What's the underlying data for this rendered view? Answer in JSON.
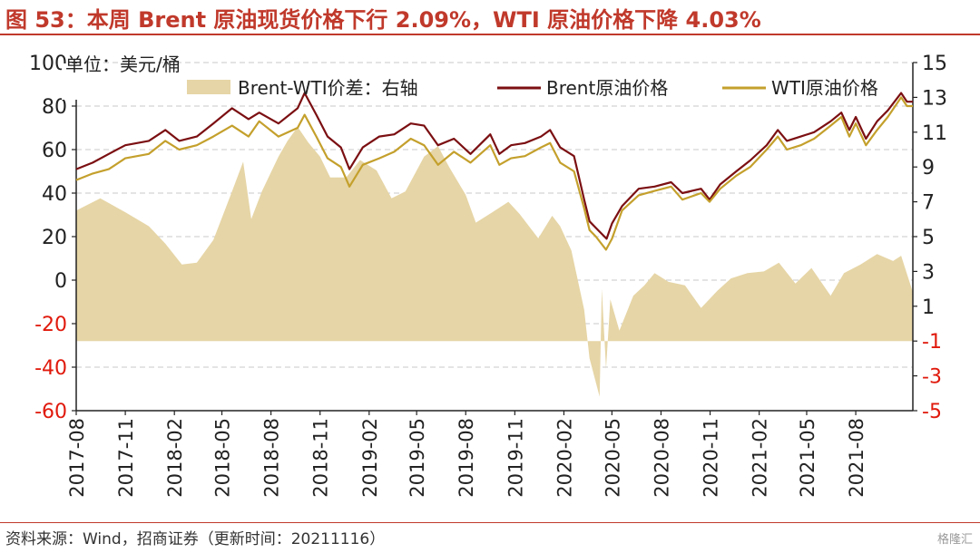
{
  "title": "图 53：本周 Brent 原油现货价格下行 2.09%，WTI 原油价格下降 4.03%",
  "source": "资料来源：Wind，招商证券（更新时间：20211116）",
  "watermark": "格隆汇",
  "chart_data": {
    "type": "line",
    "unit_label": "单位：美元/桶",
    "x_tick_labels": [
      "2017-08",
      "2017-11",
      "2018-02",
      "2018-05",
      "2018-08",
      "2018-11",
      "2019-02",
      "2019-05",
      "2019-08",
      "2019-11",
      "2020-02",
      "2020-05",
      "2020-08",
      "2020-11",
      "2021-02",
      "2021-05",
      "2021-08"
    ],
    "x_range": [
      "2017-08-01",
      "2021-11-16"
    ],
    "left_axis": {
      "ticks": [
        "100",
        "80",
        "60",
        "40",
        "20",
        "0",
        "-20",
        "-40",
        "-60"
      ],
      "ylim": [
        -60,
        100
      ],
      "negative_color": "#e0190c"
    },
    "right_axis": {
      "ticks": [
        "15",
        "13",
        "11",
        "9",
        "7",
        "5",
        "3",
        "1",
        "-1",
        "-3",
        "-5"
      ],
      "ylim": [
        -5,
        15
      ],
      "negative_color": "#e0190c"
    },
    "grid": "horizontal-dashed",
    "legend_position": "top",
    "series": [
      {
        "name": "Brent-WTI价差：右轴",
        "type": "area",
        "axis": "right",
        "color": "#e6d5a6",
        "points": [
          [
            "2017-08-01",
            6.5
          ],
          [
            "2017-09-15",
            7.2
          ],
          [
            "2017-11-01",
            6.4
          ],
          [
            "2017-12-15",
            5.6
          ],
          [
            "2018-01-15",
            4.6
          ],
          [
            "2018-02-15",
            3.4
          ],
          [
            "2018-03-15",
            3.5
          ],
          [
            "2018-04-15",
            4.8
          ],
          [
            "2018-05-15",
            7.2
          ],
          [
            "2018-06-10",
            9.3
          ],
          [
            "2018-06-25",
            6.0
          ],
          [
            "2018-07-15",
            7.6
          ],
          [
            "2018-08-15",
            9.6
          ],
          [
            "2018-09-01",
            10.5
          ],
          [
            "2018-09-20",
            11.3
          ],
          [
            "2018-10-10",
            10.4
          ],
          [
            "2018-11-01",
            9.6
          ],
          [
            "2018-11-20",
            8.4
          ],
          [
            "2018-12-20",
            8.4
          ],
          [
            "2019-01-15",
            9.4
          ],
          [
            "2019-02-15",
            8.8
          ],
          [
            "2019-03-15",
            7.2
          ],
          [
            "2019-04-10",
            7.6
          ],
          [
            "2019-05-15",
            9.6
          ],
          [
            "2019-06-10",
            10.2
          ],
          [
            "2019-07-01",
            9.0
          ],
          [
            "2019-08-01",
            7.4
          ],
          [
            "2019-08-20",
            5.8
          ],
          [
            "2019-09-20",
            6.4
          ],
          [
            "2019-10-20",
            7.0
          ],
          [
            "2019-11-10",
            6.3
          ],
          [
            "2019-12-15",
            4.9
          ],
          [
            "2020-01-10",
            6.2
          ],
          [
            "2020-01-25",
            5.6
          ],
          [
            "2020-02-15",
            4.2
          ],
          [
            "2020-03-10",
            0.8
          ],
          [
            "2020-03-20",
            -2.0
          ],
          [
            "2020-04-08",
            -4.2
          ],
          [
            "2020-04-12",
            2.0
          ],
          [
            "2020-04-20",
            -2.6
          ],
          [
            "2020-04-28",
            1.4
          ],
          [
            "2020-05-15",
            -0.4
          ],
          [
            "2020-06-10",
            1.6
          ],
          [
            "2020-07-01",
            2.2
          ],
          [
            "2020-07-20",
            2.9
          ],
          [
            "2020-08-15",
            2.4
          ],
          [
            "2020-09-15",
            2.2
          ],
          [
            "2020-10-15",
            0.9
          ],
          [
            "2020-11-15",
            1.9
          ],
          [
            "2020-12-10",
            2.6
          ],
          [
            "2021-01-10",
            2.9
          ],
          [
            "2021-02-10",
            3.0
          ],
          [
            "2021-03-10",
            3.5
          ],
          [
            "2021-04-10",
            2.3
          ],
          [
            "2021-05-10",
            3.2
          ],
          [
            "2021-06-15",
            1.6
          ],
          [
            "2021-07-10",
            2.9
          ],
          [
            "2021-08-10",
            3.4
          ],
          [
            "2021-09-10",
            4.0
          ],
          [
            "2021-10-10",
            3.6
          ],
          [
            "2021-10-25",
            3.9
          ],
          [
            "2021-11-16",
            1.8
          ]
        ]
      },
      {
        "name": "Brent原油价格",
        "type": "line",
        "axis": "left",
        "color": "#7b0f12",
        "points": [
          [
            "2017-08-01",
            51
          ],
          [
            "2017-09-01",
            54
          ],
          [
            "2017-10-01",
            58
          ],
          [
            "2017-11-01",
            62
          ],
          [
            "2017-12-15",
            64
          ],
          [
            "2018-01-15",
            69
          ],
          [
            "2018-02-10",
            64
          ],
          [
            "2018-03-15",
            66
          ],
          [
            "2018-04-15",
            72
          ],
          [
            "2018-05-20",
            79
          ],
          [
            "2018-06-20",
            74
          ],
          [
            "2018-07-10",
            77
          ],
          [
            "2018-08-15",
            72
          ],
          [
            "2018-09-20",
            79
          ],
          [
            "2018-10-03",
            86
          ],
          [
            "2018-10-25",
            76
          ],
          [
            "2018-11-15",
            66
          ],
          [
            "2018-12-10",
            61
          ],
          [
            "2018-12-26",
            51
          ],
          [
            "2019-01-20",
            61
          ],
          [
            "2019-02-20",
            66
          ],
          [
            "2019-03-20",
            67
          ],
          [
            "2019-04-20",
            72
          ],
          [
            "2019-05-15",
            71
          ],
          [
            "2019-06-10",
            62
          ],
          [
            "2019-07-10",
            65
          ],
          [
            "2019-08-10",
            58
          ],
          [
            "2019-09-16",
            67
          ],
          [
            "2019-10-03",
            58
          ],
          [
            "2019-10-25",
            62
          ],
          [
            "2019-11-20",
            63
          ],
          [
            "2019-12-20",
            66
          ],
          [
            "2020-01-06",
            69
          ],
          [
            "2020-01-25",
            61
          ],
          [
            "2020-02-20",
            57
          ],
          [
            "2020-03-10",
            37
          ],
          [
            "2020-03-20",
            27
          ],
          [
            "2020-04-01",
            24
          ],
          [
            "2020-04-21",
            19
          ],
          [
            "2020-05-01",
            26
          ],
          [
            "2020-05-20",
            34
          ],
          [
            "2020-06-20",
            42
          ],
          [
            "2020-07-20",
            43
          ],
          [
            "2020-08-20",
            45
          ],
          [
            "2020-09-10",
            40
          ],
          [
            "2020-10-15",
            42
          ],
          [
            "2020-10-31",
            37
          ],
          [
            "2020-11-20",
            44
          ],
          [
            "2020-12-20",
            50
          ],
          [
            "2021-01-15",
            55
          ],
          [
            "2021-02-15",
            62
          ],
          [
            "2021-03-08",
            69
          ],
          [
            "2021-03-25",
            64
          ],
          [
            "2021-04-20",
            66
          ],
          [
            "2021-05-15",
            68
          ],
          [
            "2021-06-15",
            73
          ],
          [
            "2021-07-05",
            77
          ],
          [
            "2021-07-20",
            69
          ],
          [
            "2021-08-01",
            75
          ],
          [
            "2021-08-20",
            65
          ],
          [
            "2021-09-10",
            73
          ],
          [
            "2021-09-30",
            78
          ],
          [
            "2021-10-25",
            86
          ],
          [
            "2021-11-05",
            82
          ],
          [
            "2021-11-16",
            82
          ]
        ]
      },
      {
        "name": "WTI原油价格",
        "type": "line",
        "axis": "left",
        "color": "#c4a02c",
        "points": [
          [
            "2017-08-01",
            46
          ],
          [
            "2017-09-01",
            49
          ],
          [
            "2017-10-01",
            51
          ],
          [
            "2017-11-01",
            56
          ],
          [
            "2017-12-15",
            58
          ],
          [
            "2018-01-15",
            64
          ],
          [
            "2018-02-10",
            60
          ],
          [
            "2018-03-15",
            62
          ],
          [
            "2018-04-15",
            66
          ],
          [
            "2018-05-20",
            71
          ],
          [
            "2018-06-20",
            66
          ],
          [
            "2018-07-10",
            73
          ],
          [
            "2018-08-15",
            66
          ],
          [
            "2018-09-20",
            70
          ],
          [
            "2018-10-03",
            76
          ],
          [
            "2018-10-25",
            66
          ],
          [
            "2018-11-15",
            56
          ],
          [
            "2018-12-10",
            52
          ],
          [
            "2018-12-26",
            43
          ],
          [
            "2019-01-20",
            53
          ],
          [
            "2019-02-20",
            56
          ],
          [
            "2019-03-20",
            59
          ],
          [
            "2019-04-20",
            65
          ],
          [
            "2019-05-15",
            62
          ],
          [
            "2019-06-10",
            53
          ],
          [
            "2019-07-10",
            59
          ],
          [
            "2019-08-10",
            54
          ],
          [
            "2019-09-16",
            62
          ],
          [
            "2019-10-03",
            53
          ],
          [
            "2019-10-25",
            56
          ],
          [
            "2019-11-20",
            57
          ],
          [
            "2019-12-20",
            61
          ],
          [
            "2020-01-06",
            63
          ],
          [
            "2020-01-25",
            54
          ],
          [
            "2020-02-20",
            50
          ],
          [
            "2020-03-10",
            33
          ],
          [
            "2020-03-20",
            23
          ],
          [
            "2020-04-01",
            20
          ],
          [
            "2020-04-20",
            14
          ],
          [
            "2020-05-01",
            19
          ],
          [
            "2020-05-20",
            32
          ],
          [
            "2020-06-20",
            39
          ],
          [
            "2020-07-20",
            41
          ],
          [
            "2020-08-20",
            43
          ],
          [
            "2020-09-10",
            37
          ],
          [
            "2020-10-15",
            40
          ],
          [
            "2020-10-31",
            36
          ],
          [
            "2020-11-20",
            42
          ],
          [
            "2020-12-20",
            48
          ],
          [
            "2021-01-15",
            52
          ],
          [
            "2021-02-15",
            60
          ],
          [
            "2021-03-08",
            66
          ],
          [
            "2021-03-25",
            60
          ],
          [
            "2021-04-20",
            62
          ],
          [
            "2021-05-15",
            65
          ],
          [
            "2021-06-15",
            71
          ],
          [
            "2021-07-05",
            75
          ],
          [
            "2021-07-20",
            66
          ],
          [
            "2021-08-01",
            72
          ],
          [
            "2021-08-20",
            62
          ],
          [
            "2021-09-10",
            69
          ],
          [
            "2021-09-30",
            75
          ],
          [
            "2021-10-25",
            84
          ],
          [
            "2021-11-05",
            80
          ],
          [
            "2021-11-16",
            80
          ]
        ]
      }
    ]
  }
}
